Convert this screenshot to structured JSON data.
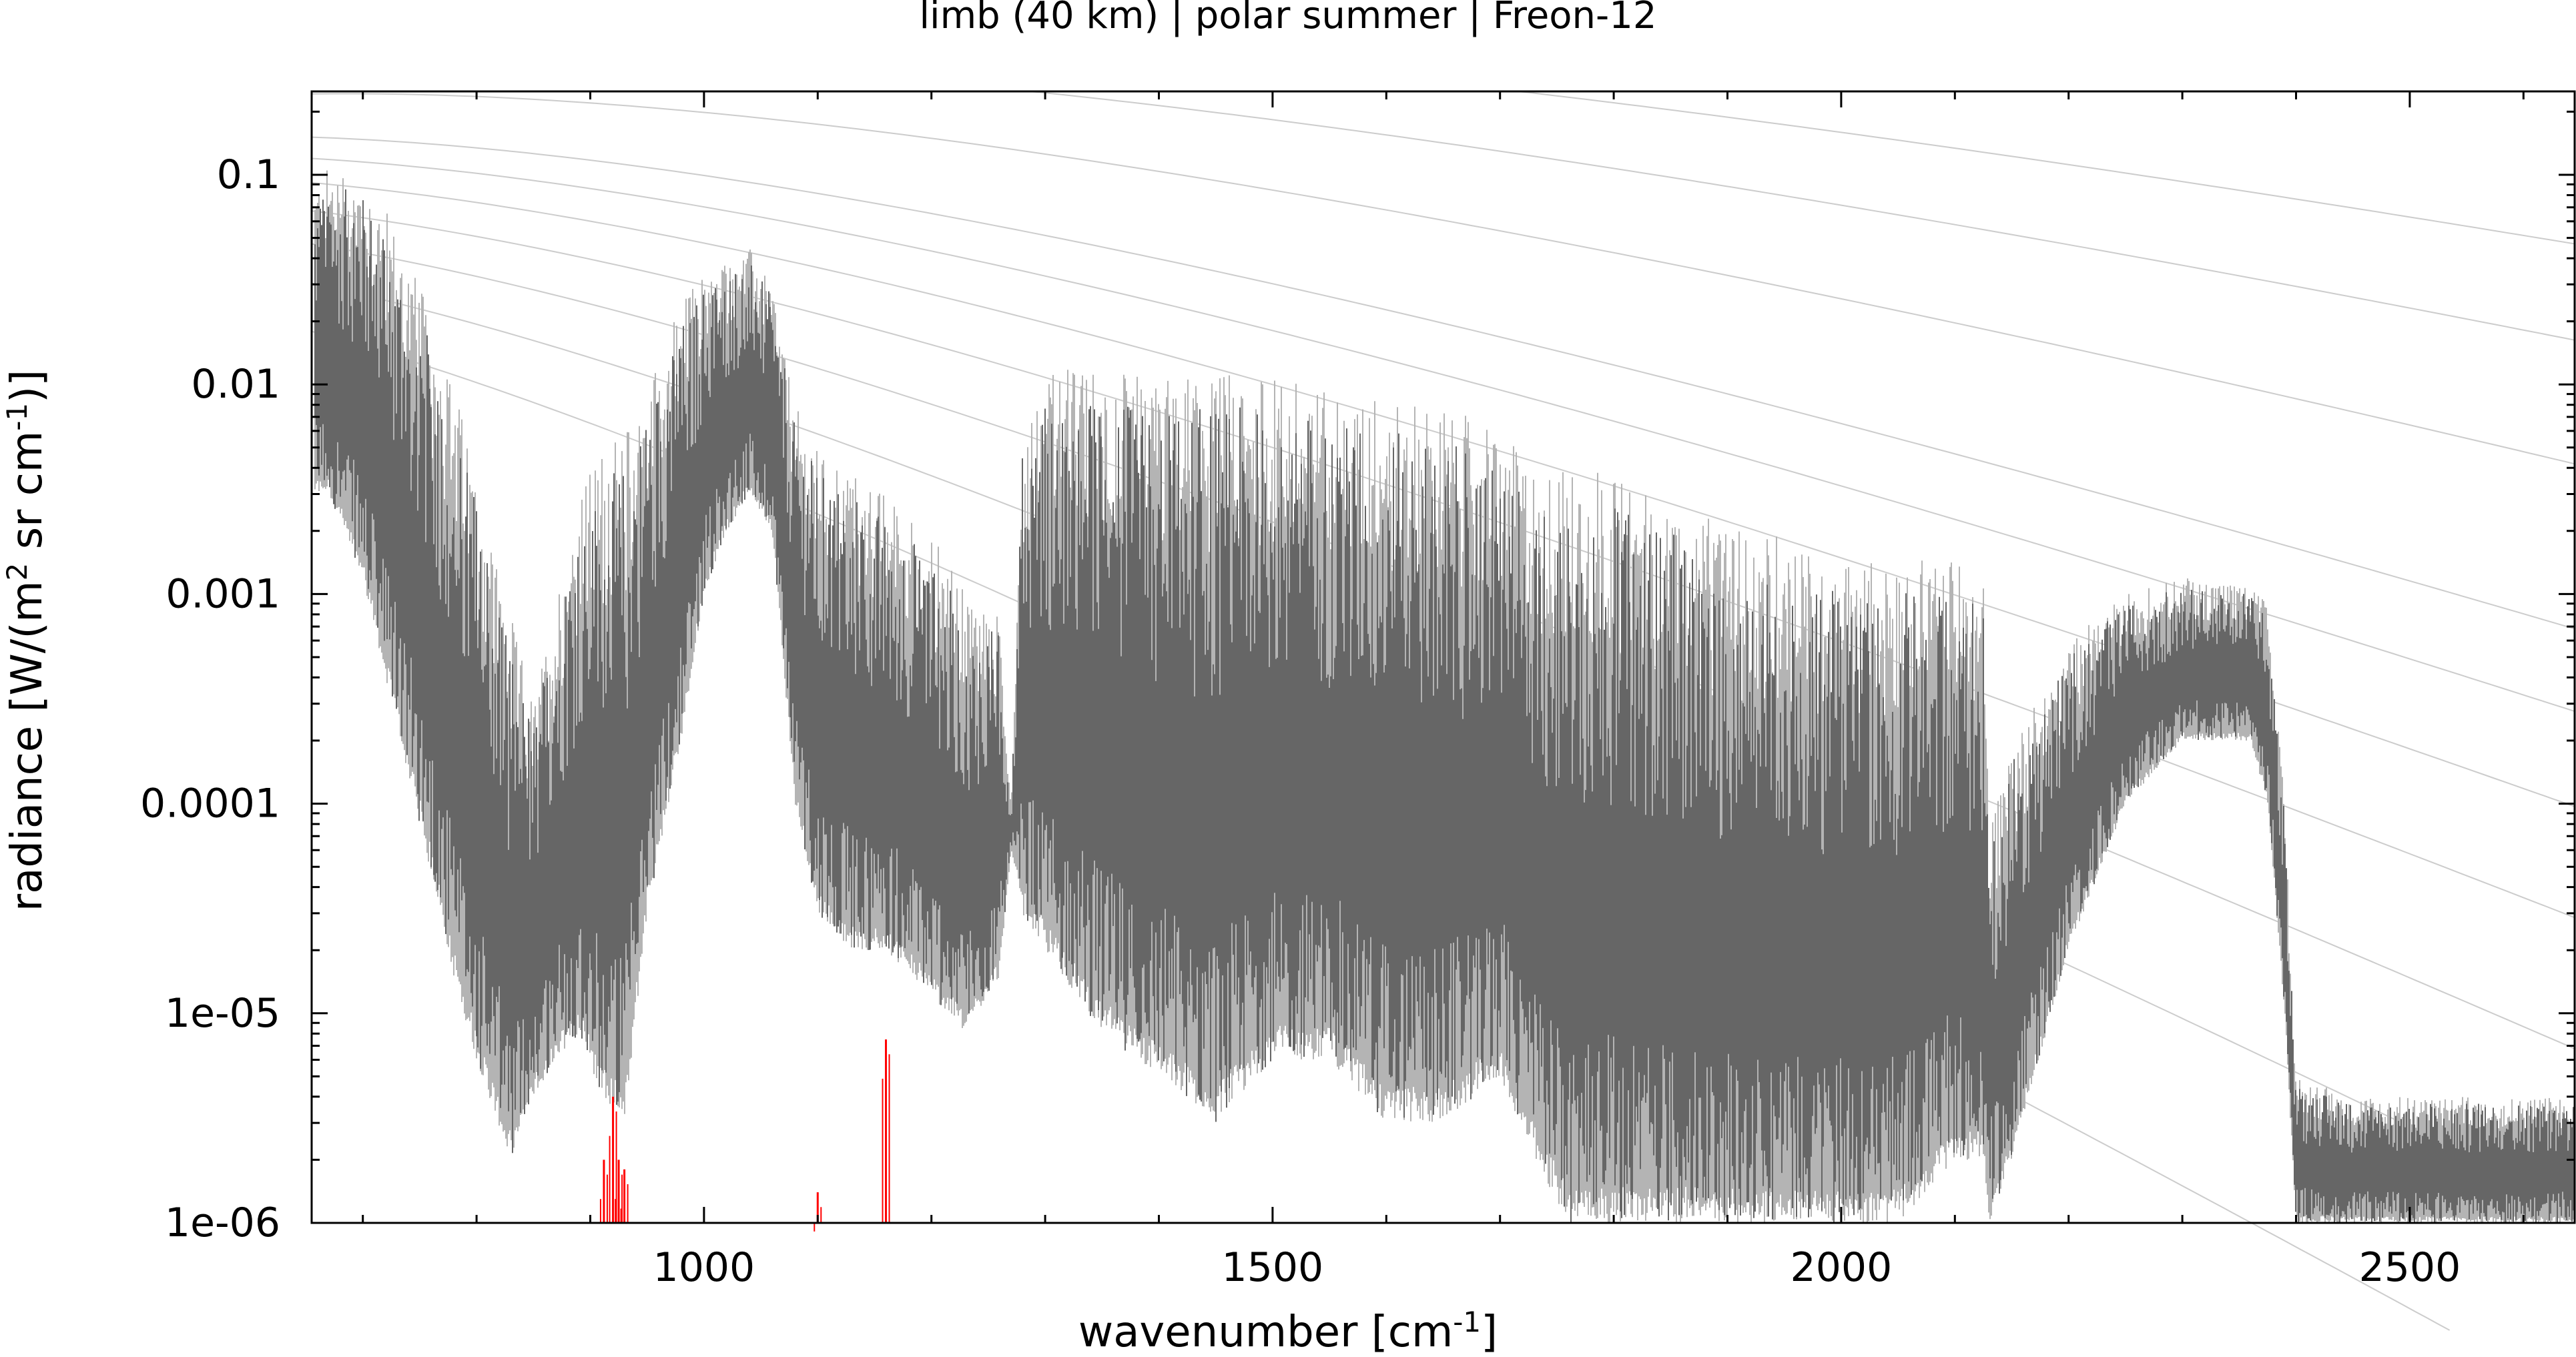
{
  "chart_data": {
    "type": "line",
    "title": "limb (40 km) | polar summer | Freon-12",
    "xlabel": "wavenumber [cm",
    "xlabel_sup": "-1",
    "xlabel_end": "]",
    "ylabel": "radiance [W/(m",
    "ylabel_sup1": "2",
    "ylabel_mid": " sr cm",
    "ylabel_sup2": "-1",
    "ylabel_end": ")]",
    "xlim": [
      655,
      2645
    ],
    "ylim": [
      1e-06,
      0.25
    ],
    "yscale": "log",
    "xticks": [
      1000,
      1500,
      2000,
      2500
    ],
    "xtick_labels": [
      "1000",
      "1500",
      "2000",
      "2500"
    ],
    "yticks": [
      1e-06,
      1e-05,
      0.0001,
      0.001,
      0.01,
      0.1
    ],
    "ytick_labels": [
      "1e-06",
      "1e-05",
      "0.0001",
      "0.001",
      "0.01",
      "0.1"
    ],
    "grid": false,
    "legend": "none",
    "colors": {
      "spectrum_total": "#666666",
      "spectrum_envelope": "#b4b4b4",
      "planck_curves": "#cccccc",
      "freon12": "#ff0000"
    },
    "planck_temperatures_K": [
      180,
      200,
      220,
      240,
      260,
      280,
      300,
      350,
      400,
      450
    ],
    "series": [
      {
        "role": "spectrum_total",
        "x": [
          657,
          670,
          700,
          720,
          750,
          780,
          800,
          830,
          850,
          870,
          890,
          910,
          930,
          950,
          980,
          1000,
          1020,
          1040,
          1060,
          1080,
          1100,
          1130,
          1160,
          1200,
          1230,
          1260,
          1270,
          1280,
          1300,
          1350,
          1400,
          1450,
          1500,
          1550,
          1600,
          1650,
          1700,
          1730,
          1760,
          1800,
          1850,
          1900,
          1950,
          1980,
          2000,
          2050,
          2100,
          2125,
          2130,
          2150,
          2200,
          2250,
          2300,
          2360,
          2375,
          2390,
          2400,
          2450,
          2500,
          2550,
          2600,
          2645
        ],
        "ymin": [
          0.003,
          0.003,
          0.0012,
          0.0004,
          8e-05,
          1.5e-05,
          6e-06,
          2e-06,
          4e-06,
          6e-06,
          8e-06,
          4e-06,
          3e-06,
          3e-05,
          0.0002,
          0.001,
          0.002,
          0.003,
          0.002,
          0.0001,
          3e-05,
          2e-05,
          2e-05,
          1.2e-05,
          8e-06,
          1.5e-05,
          6e-05,
          3e-05,
          2e-05,
          8e-06,
          5e-06,
          3e-06,
          6e-06,
          6e-06,
          3e-06,
          3e-06,
          5e-06,
          2e-06,
          1e-06,
          1e-06,
          1e-06,
          1e-06,
          1e-06,
          1e-06,
          1e-06,
          1e-06,
          2e-06,
          2e-06,
          1e-06,
          2e-06,
          2e-05,
          0.0001,
          0.0002,
          0.0002,
          0.0001,
          1e-05,
          1e-06,
          1e-06,
          1e-06,
          1e-06,
          1e-06,
          1e-06
        ],
        "ymax": [
          0.09,
          0.11,
          0.1,
          0.07,
          0.03,
          0.01,
          0.004,
          0.0008,
          0.0003,
          0.001,
          0.003,
          0.005,
          0.006,
          0.01,
          0.025,
          0.035,
          0.04,
          0.045,
          0.03,
          0.008,
          0.005,
          0.004,
          0.003,
          0.002,
          0.001,
          0.0008,
          0.0001,
          0.006,
          0.012,
          0.012,
          0.011,
          0.012,
          0.011,
          0.01,
          0.009,
          0.008,
          0.006,
          0.004,
          0.004,
          0.004,
          0.003,
          0.002,
          0.002,
          0.0015,
          0.0015,
          0.0015,
          0.0015,
          0.0012,
          8e-05,
          0.0002,
          0.0006,
          0.001,
          0.0012,
          0.0011,
          0.0009,
          0.0001,
          5e-06,
          4e-06,
          4e-06,
          4e-06,
          4e-06,
          4e-06
        ]
      },
      {
        "role": "freon12",
        "x": [
          912,
          920,
          925,
          930,
          1100,
          1160
        ],
        "peak": [
          2e-06,
          4e-06,
          2e-06,
          1.8e-06,
          1.4e-06,
          7.5e-06
        ]
      }
    ]
  }
}
